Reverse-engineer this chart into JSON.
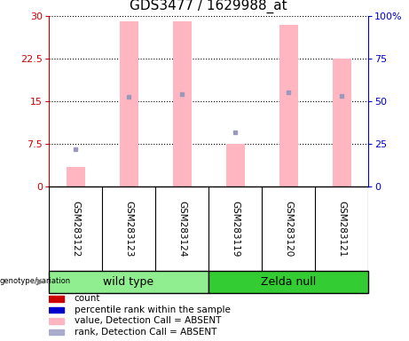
{
  "title": "GDS3477 / 1629988_at",
  "samples": [
    "GSM283122",
    "GSM283123",
    "GSM283124",
    "GSM283119",
    "GSM283120",
    "GSM283121"
  ],
  "bar_heights_pink": [
    3.5,
    29.0,
    29.0,
    7.5,
    28.5,
    22.5
  ],
  "rank_dots_y": [
    6.5,
    15.8,
    16.2,
    9.5,
    16.5,
    16.0
  ],
  "ylim_left": [
    0,
    30
  ],
  "ylim_right": [
    0,
    100
  ],
  "yticks_left": [
    0,
    7.5,
    15,
    22.5,
    30
  ],
  "yticks_right": [
    0,
    25,
    50,
    75,
    100
  ],
  "ytick_labels_left": [
    "0",
    "7.5",
    "15",
    "22.5",
    "30"
  ],
  "ytick_labels_right": [
    "0",
    "25",
    "50",
    "75",
    "100%"
  ],
  "bar_color_pink": "#FFB6C1",
  "dot_color_blue": "#9999BB",
  "left_axis_color": "#CC0000",
  "right_axis_color": "#0000CC",
  "legend_items": [
    {
      "label": "count",
      "color": "#CC0000"
    },
    {
      "label": "percentile rank within the sample",
      "color": "#0000CC"
    },
    {
      "label": "value, Detection Call = ABSENT",
      "color": "#FFB6C1"
    },
    {
      "label": "rank, Detection Call = ABSENT",
      "color": "#AAAACC"
    }
  ],
  "bar_width": 0.35,
  "x_positions": [
    0,
    1,
    2,
    3,
    4,
    5
  ],
  "wt_color": "#90EE90",
  "zn_color": "#33CC33",
  "label_bg": "#CCCCCC",
  "group_label_fontsize": 9,
  "sample_fontsize": 7.5,
  "tick_fontsize": 8,
  "title_fontsize": 11
}
